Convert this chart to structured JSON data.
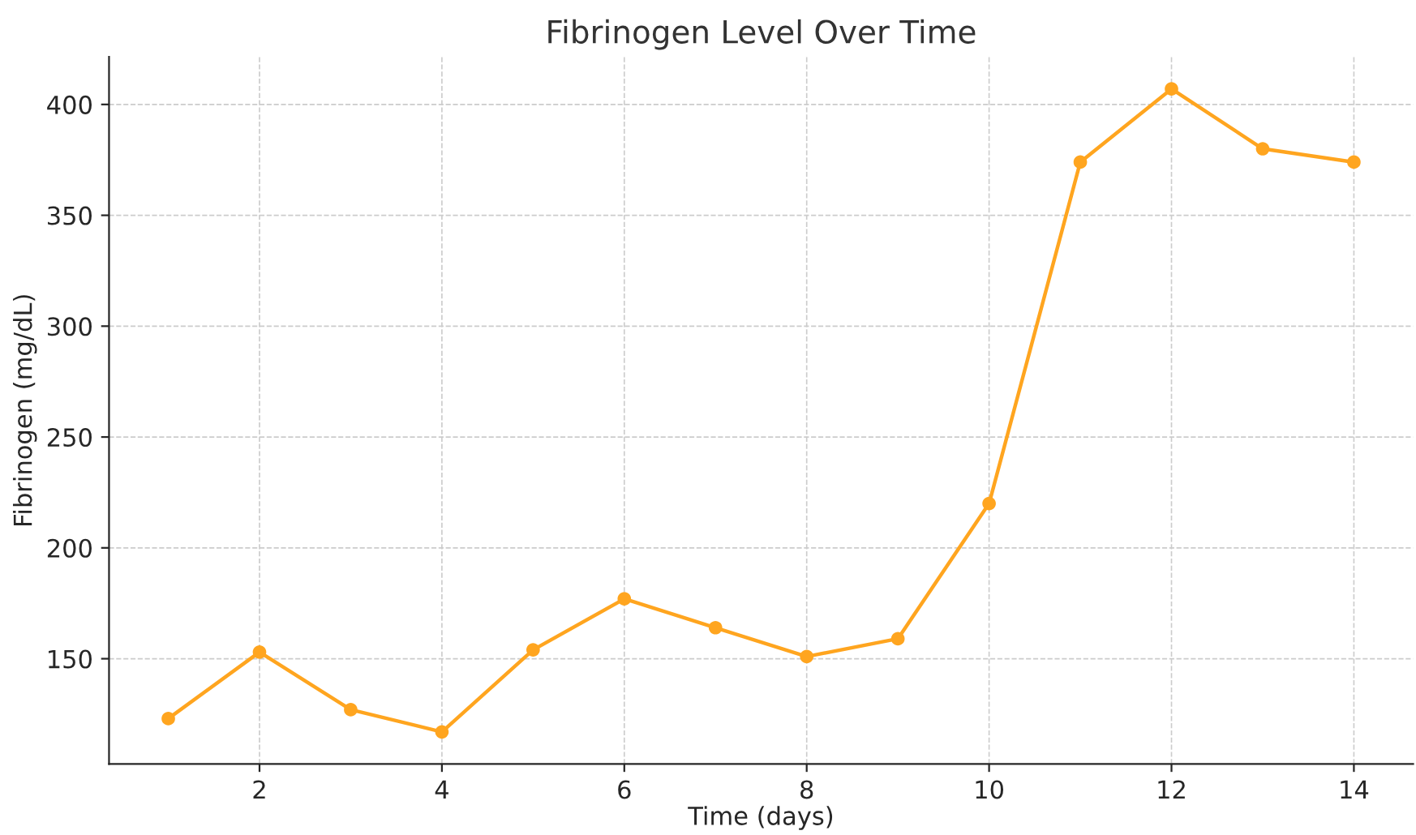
{
  "chart_data": {
    "type": "line",
    "title": "Fibrinogen Level Over Time",
    "xlabel": "Time (days)",
    "ylabel": "Fibrinogen (mg/dL)",
    "x": [
      1,
      2,
      3,
      4,
      5,
      6,
      7,
      8,
      9,
      10,
      11,
      12,
      13,
      14
    ],
    "series": [
      {
        "color": "#ffa51f",
        "values": [
          123,
          153,
          127,
          117,
          154,
          177,
          164,
          151,
          159,
          220,
          374,
          407,
          380,
          374
        ]
      }
    ],
    "xlim": [
      0.35,
      14.65
    ],
    "ylim": [
      102.5,
      421.5
    ],
    "xticks": [
      2,
      4,
      6,
      8,
      10,
      12,
      14
    ],
    "yticks": [
      150,
      200,
      250,
      300,
      350,
      400
    ],
    "grid": true,
    "marker": "circle",
    "line_style": "solid"
  }
}
